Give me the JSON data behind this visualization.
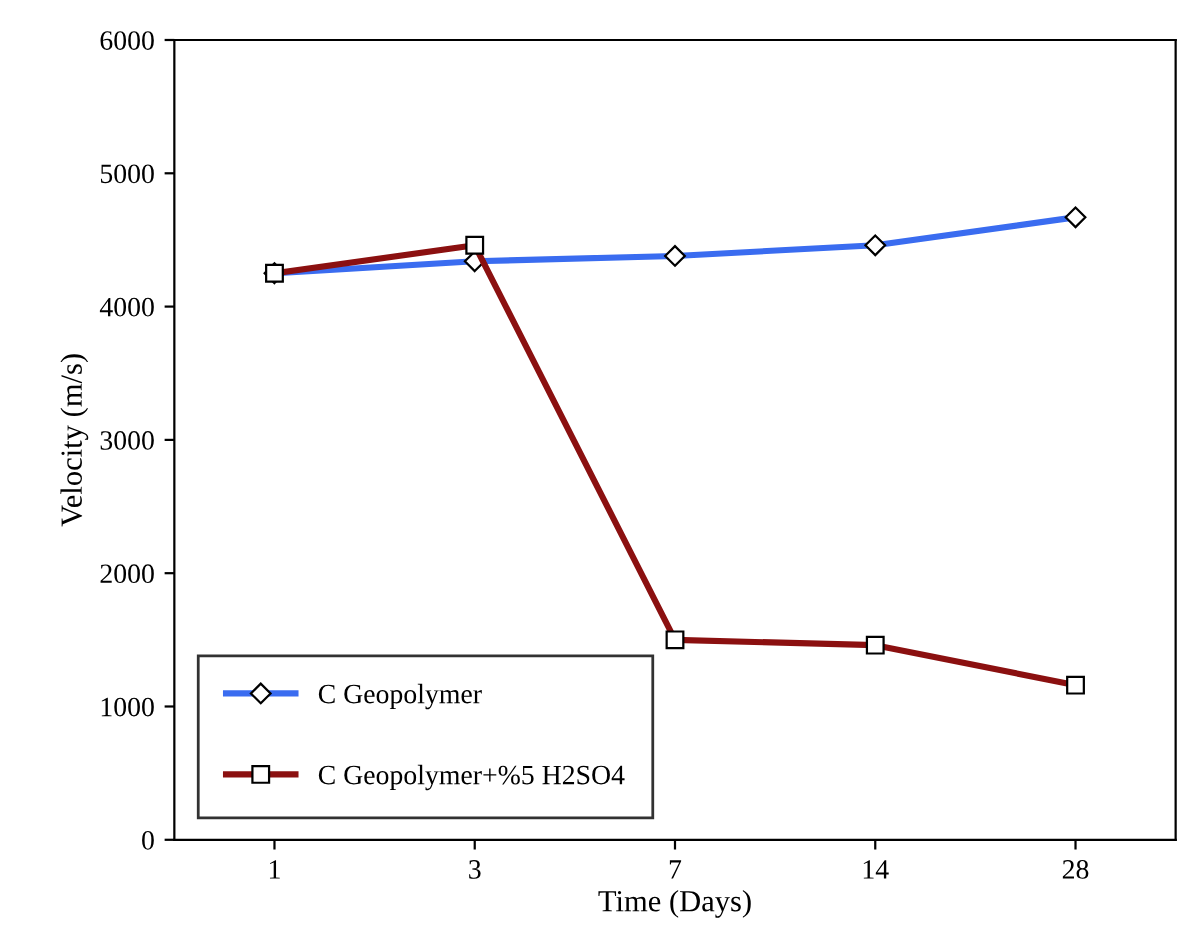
{
  "chart_data": {
    "type": "line",
    "xlabel": "Time (Days)",
    "ylabel": "Velocity (m/s)",
    "categories": [
      "1",
      "3",
      "7",
      "14",
      "28"
    ],
    "series": [
      {
        "name": "C Geopolymer",
        "color": "#3a6cf0",
        "marker": "diamond",
        "values": [
          4250,
          4340,
          4380,
          4460,
          4670
        ]
      },
      {
        "name": "C Geopolymer+%5 H2SO4",
        "color": "#8b1010",
        "marker": "square",
        "values": [
          4250,
          4460,
          1500,
          1460,
          1160
        ]
      }
    ],
    "ylim": [
      0,
      6000
    ],
    "yticks": [
      0,
      1000,
      2000,
      3000,
      4000,
      5000,
      6000
    ],
    "grid": false,
    "legend": "bottom left",
    "line_style": "solid"
  }
}
